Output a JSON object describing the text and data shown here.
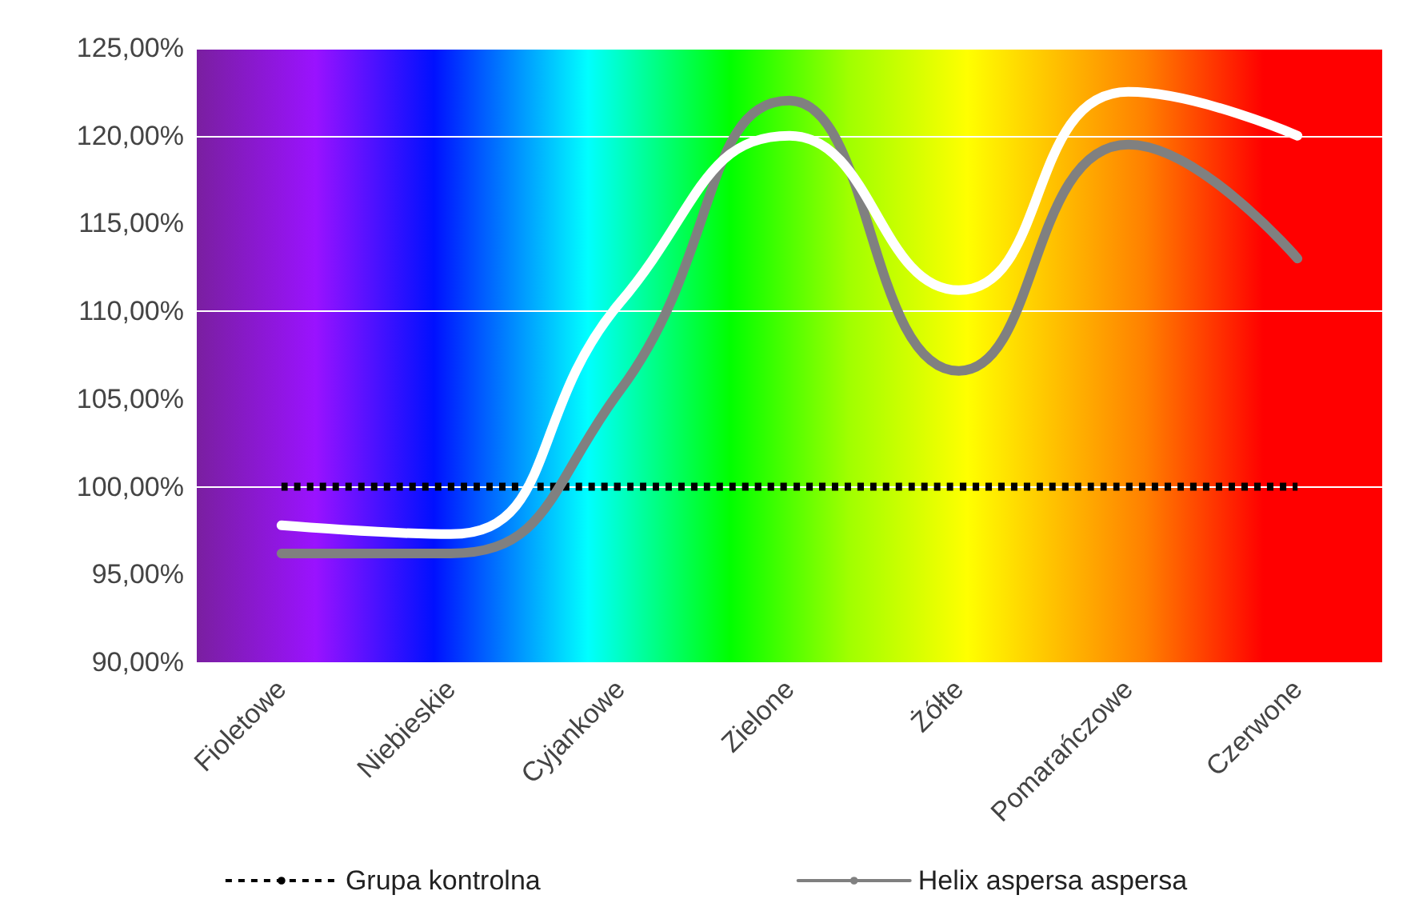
{
  "chart_data": {
    "type": "line",
    "categories": [
      "Fioletowe",
      "Niebieskie",
      "Cyjankowe",
      "Zielone",
      "Żółte",
      "Pomarańczowe",
      "Czerwone"
    ],
    "series": [
      {
        "name": "Grupa kontrolna",
        "color": "#000000",
        "line_style": "dotted",
        "values": [
          100,
          100,
          100,
          100,
          100,
          100,
          100
        ]
      },
      {
        "name": "Helix aspersa aspersa",
        "color": "#808080",
        "line_style": "solid",
        "values": [
          96.2,
          96.2,
          105.5,
          122,
          106.6,
          119.5,
          113
        ]
      },
      {
        "color": "#ffffff",
        "line_style": "solid",
        "values": [
          97.8,
          97.3,
          110.5,
          120,
          111.2,
          122.5,
          120
        ]
      }
    ],
    "ylim": [
      90,
      125
    ],
    "yticks": [
      {
        "value": 90,
        "label": "90,00%"
      },
      {
        "value": 95,
        "label": "95,00%"
      },
      {
        "value": 100,
        "label": "100,00%"
      },
      {
        "value": 105,
        "label": "105,00%"
      },
      {
        "value": 110,
        "label": "110,00%"
      },
      {
        "value": 115,
        "label": "115,00%"
      },
      {
        "value": 120,
        "label": "120,00%"
      },
      {
        "value": 125,
        "label": "125,00%"
      }
    ],
    "grid": "y",
    "legend": "bottom",
    "marker": "none"
  }
}
